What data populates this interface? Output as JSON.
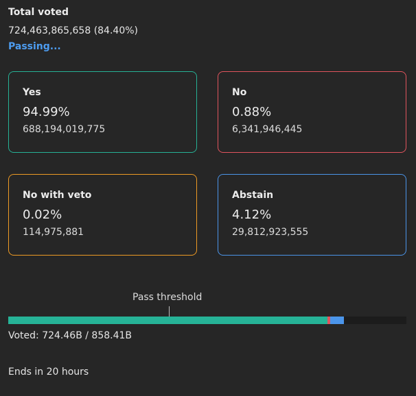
{
  "summary": {
    "title": "Total voted",
    "total": "724,463,865,658 (84.40%)",
    "status": "Passing..."
  },
  "options": [
    {
      "label": "Yes",
      "percent": "94.99%",
      "amount": "688,194,019,775",
      "color": "#26b397"
    },
    {
      "label": "No",
      "percent": "0.88%",
      "amount": "6,341,946,445",
      "color": "#e2545e"
    },
    {
      "label": "No with veto",
      "percent": "0.02%",
      "amount": "114,975,881",
      "color": "#ef9b24"
    },
    {
      "label": "Abstain",
      "percent": "4.12%",
      "amount": "29,812,923,555",
      "color": "#4b95ea"
    }
  ],
  "threshold": {
    "label": "Pass threshold",
    "position_percent": 40
  },
  "progress": {
    "voted_text": "Voted: 724.46B / 858.41B",
    "segments_percent_of_total": [
      {
        "name": "yes",
        "percent": 80.17,
        "color": "#26b397"
      },
      {
        "name": "no",
        "percent": 0.74,
        "color": "#e2545e"
      },
      {
        "name": "no-with-veto",
        "percent": 0.01,
        "color": "#ef9b24"
      },
      {
        "name": "abstain",
        "percent": 3.47,
        "color": "#4b95ea"
      }
    ]
  },
  "footer": {
    "ends": "Ends in 20 hours"
  }
}
